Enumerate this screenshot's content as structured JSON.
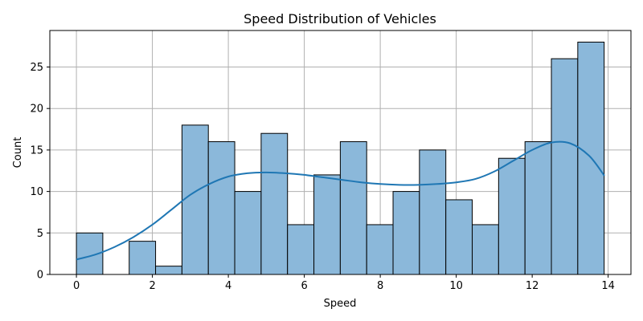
{
  "chart_data": {
    "type": "bar",
    "title": "Speed Distribution of Vehicles",
    "xlabel": "Speed",
    "ylabel": "Count",
    "xlim": [
      -0.7,
      14.6
    ],
    "ylim": [
      0,
      29.4
    ],
    "xticks": [
      0,
      2,
      4,
      6,
      8,
      10,
      12,
      14
    ],
    "yticks": [
      0,
      5,
      10,
      15,
      20,
      25
    ],
    "grid": true,
    "bar_color": "#8bb8da",
    "edge_color": "#000000",
    "kde_color": "#1f77b4",
    "grid_color": "#b0b0b0",
    "bins": {
      "edges": [
        0.0,
        0.6947,
        1.3895,
        2.0842,
        2.7789,
        3.4737,
        4.1684,
        4.8632,
        5.5579,
        6.2526,
        6.9474,
        7.6421,
        8.3368,
        9.0316,
        9.7263,
        10.4211,
        11.1158,
        11.8105,
        12.5053,
        13.2,
        13.8947
      ],
      "counts": [
        5,
        0,
        4,
        1,
        18,
        16,
        10,
        17,
        6,
        12,
        16,
        6,
        10,
        15,
        9,
        6,
        14,
        16,
        26,
        28
      ]
    },
    "kde": {
      "x": [
        0,
        0.5,
        1,
        1.5,
        2,
        2.5,
        3,
        3.5,
        4,
        4.5,
        5,
        5.5,
        6,
        6.5,
        7,
        7.5,
        8,
        8.5,
        9,
        9.5,
        10,
        10.5,
        11,
        11.5,
        12,
        12.5,
        13,
        13.5,
        13.9
      ],
      "y": [
        1.8,
        2.4,
        3.3,
        4.5,
        6.0,
        7.8,
        9.6,
        10.9,
        11.8,
        12.2,
        12.3,
        12.2,
        12.0,
        11.7,
        11.4,
        11.1,
        10.9,
        10.8,
        10.8,
        10.9,
        11.1,
        11.5,
        12.4,
        13.7,
        15.0,
        15.9,
        15.8,
        14.3,
        11.9
      ]
    }
  }
}
